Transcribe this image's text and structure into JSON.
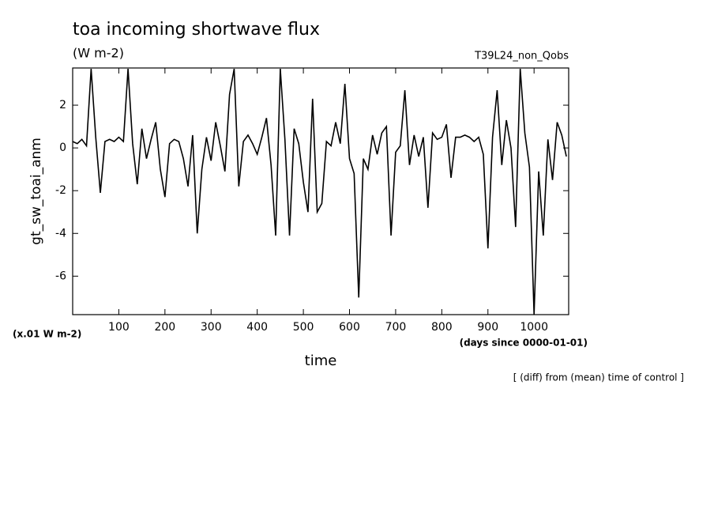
{
  "chart_data": {
    "type": "line",
    "title": "toa incoming shortwave flux",
    "subtitle": "(W m-2)",
    "run_label": "T39L24_non_Qobs",
    "y_label": "gt_sw_toai_anm",
    "y_unit_note": "(x.01 W m-2)",
    "x_label": "time",
    "x_unit_note": "(days since 0000-01-01)",
    "footer": "[ (diff) from (mean) time of control ]",
    "xlim": [
      0,
      1075
    ],
    "xticks": [
      100,
      200,
      300,
      400,
      500,
      600,
      700,
      800,
      900,
      1000
    ],
    "ylim": [
      -7.8,
      3.74
    ],
    "yticks": [
      -6,
      -4,
      -2,
      0,
      2
    ],
    "grid": false,
    "series": [
      {
        "color": "#000000",
        "x": [
          0,
          10,
          20,
          30,
          40,
          50,
          60,
          70,
          80,
          90,
          100,
          110,
          120,
          130,
          140,
          150,
          160,
          170,
          180,
          190,
          200,
          210,
          220,
          230,
          240,
          250,
          260,
          270,
          280,
          290,
          300,
          310,
          320,
          330,
          340,
          350,
          360,
          370,
          380,
          390,
          400,
          410,
          420,
          430,
          440,
          450,
          460,
          470,
          480,
          490,
          500,
          510,
          520,
          530,
          540,
          550,
          560,
          570,
          580,
          590,
          600,
          610,
          620,
          630,
          640,
          650,
          660,
          670,
          680,
          690,
          700,
          710,
          720,
          730,
          740,
          750,
          760,
          770,
          780,
          790,
          800,
          810,
          820,
          830,
          840,
          850,
          860,
          870,
          880,
          890,
          900,
          910,
          920,
          930,
          940,
          950,
          960,
          970,
          980,
          990,
          1000,
          1010,
          1020,
          1030,
          1040,
          1050,
          1060,
          1070
        ],
        "values": [
          0.3,
          0.2,
          0.4,
          0.1,
          3.7,
          0.5,
          -2.1,
          0.3,
          0.4,
          0.3,
          0.5,
          0.3,
          3.7,
          0.2,
          -1.7,
          0.9,
          -0.5,
          0.4,
          1.2,
          -1.0,
          -2.3,
          0.2,
          0.4,
          0.3,
          -0.5,
          -1.8,
          0.6,
          -4.0,
          -1.0,
          0.5,
          -0.6,
          1.2,
          0.1,
          -1.1,
          2.5,
          3.7,
          -1.8,
          0.3,
          0.6,
          0.2,
          -0.3,
          0.5,
          1.4,
          -0.8,
          -4.1,
          3.7,
          0.4,
          -4.1,
          0.9,
          0.2,
          -1.6,
          -3.0,
          2.3,
          -3.0,
          -2.6,
          0.3,
          0.1,
          1.2,
          0.2,
          3.0,
          -0.5,
          -1.2,
          -7.0,
          -0.5,
          -1.0,
          0.6,
          -0.3,
          0.7,
          1.0,
          -4.1,
          -0.2,
          0.1,
          2.7,
          -0.8,
          0.6,
          -0.4,
          0.5,
          -2.8,
          0.7,
          0.4,
          0.5,
          1.1,
          -1.4,
          0.5,
          0.5,
          0.6,
          0.5,
          0.3,
          0.5,
          -0.3,
          -4.7,
          0.5,
          2.7,
          -0.8,
          1.3,
          0.0,
          -3.7,
          3.7,
          0.7,
          -0.9,
          -7.8,
          -1.1,
          -4.1,
          0.4,
          -1.5,
          1.2,
          0.6,
          -0.4
        ]
      }
    ]
  }
}
